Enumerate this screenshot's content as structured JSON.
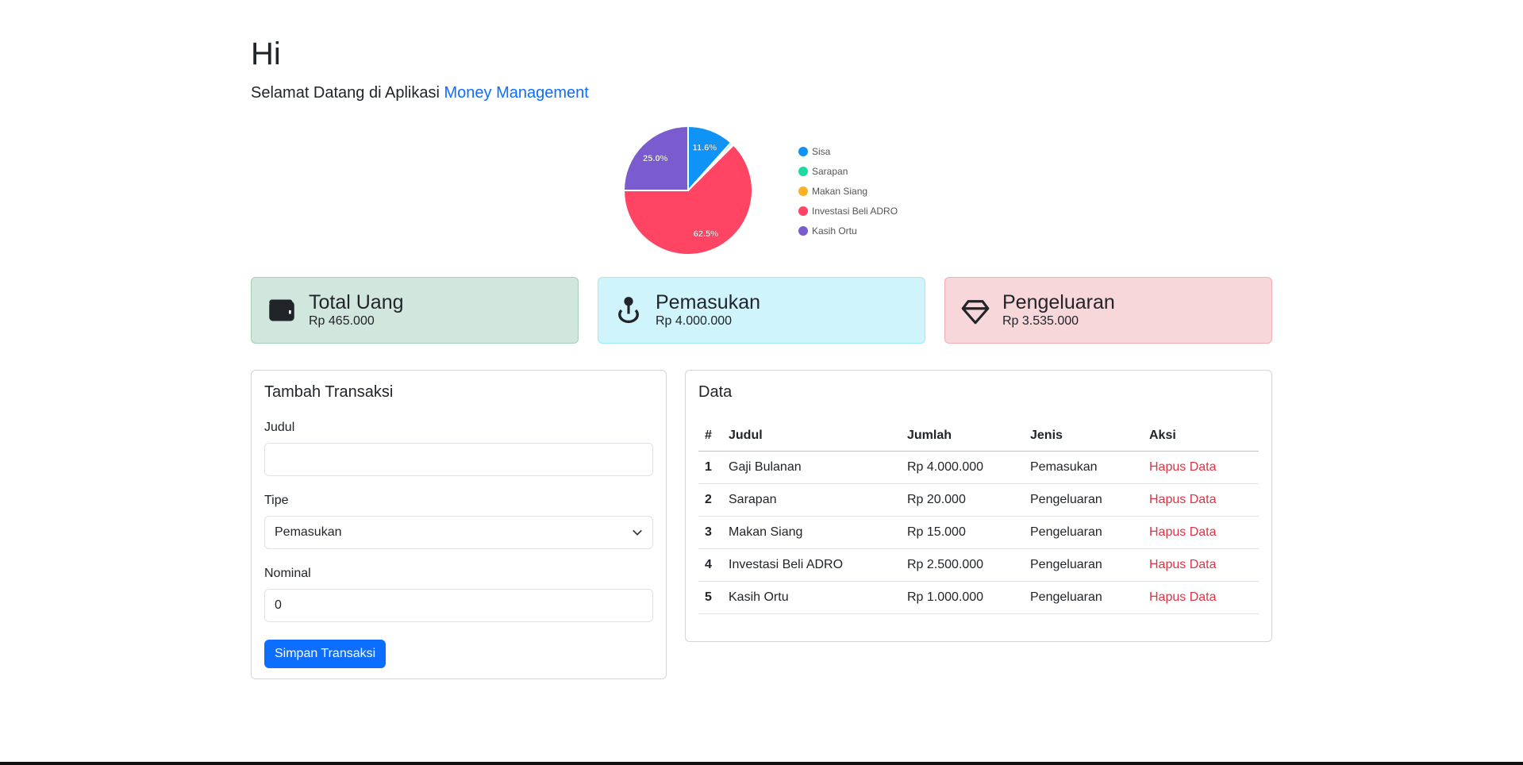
{
  "header": {
    "greeting": "Hi",
    "subtitle": "Selamat Datang di Aplikasi",
    "app_name": "Money Management"
  },
  "chart_data": {
    "type": "pie",
    "categories": [
      "Sisa",
      "Sarapan",
      "Makan Siang",
      "Investasi Beli ADRO",
      "Kasih Ortu"
    ],
    "values": [
      465000,
      20000,
      15000,
      2500000,
      1000000
    ],
    "colors": [
      "#0f93f7",
      "#1fd9a0",
      "#feb122",
      "#ff4563",
      "#7a5ccf"
    ],
    "data_labels": [
      "11.6%",
      "",
      "",
      "62.5%",
      "25.0%"
    ],
    "legend_position": "right"
  },
  "cards": [
    {
      "title": "Total Uang",
      "value": "Rp 465.000",
      "icon": "wallet-icon",
      "bg": "#d1e7dd",
      "border": "#a3cfbb"
    },
    {
      "title": "Pemasukan",
      "value": "Rp 4.000.000",
      "icon": "pin-map-icon",
      "bg": "#cff4fc",
      "border": "#9eeaf9"
    },
    {
      "title": "Pengeluaran",
      "value": "Rp 3.535.000",
      "icon": "gem-icon",
      "bg": "#f8d7da",
      "border": "#f1aeb5"
    }
  ],
  "form": {
    "title": "Tambah Transaksi",
    "judul_label": "Judul",
    "judul_value": "",
    "tipe_label": "Tipe",
    "tipe_value": "Pemasukan",
    "nominal_label": "Nominal",
    "nominal_value": "0",
    "submit": "Simpan Transaksi"
  },
  "table": {
    "title": "Data",
    "headers": [
      "#",
      "Judul",
      "Jumlah",
      "Jenis",
      "Aksi"
    ],
    "rows": [
      [
        "1",
        "Gaji Bulanan",
        "Rp 4.000.000",
        "Pemasukan",
        "Hapus Data"
      ],
      [
        "2",
        "Sarapan",
        "Rp 20.000",
        "Pengeluaran",
        "Hapus Data"
      ],
      [
        "3",
        "Makan Siang",
        "Rp 15.000",
        "Pengeluaran",
        "Hapus Data"
      ],
      [
        "4",
        "Investasi Beli ADRO",
        "Rp 2.500.000",
        "Pengeluaran",
        "Hapus Data"
      ],
      [
        "5",
        "Kasih Ortu",
        "Rp 1.000.000",
        "Pengeluaran",
        "Hapus Data"
      ]
    ]
  }
}
